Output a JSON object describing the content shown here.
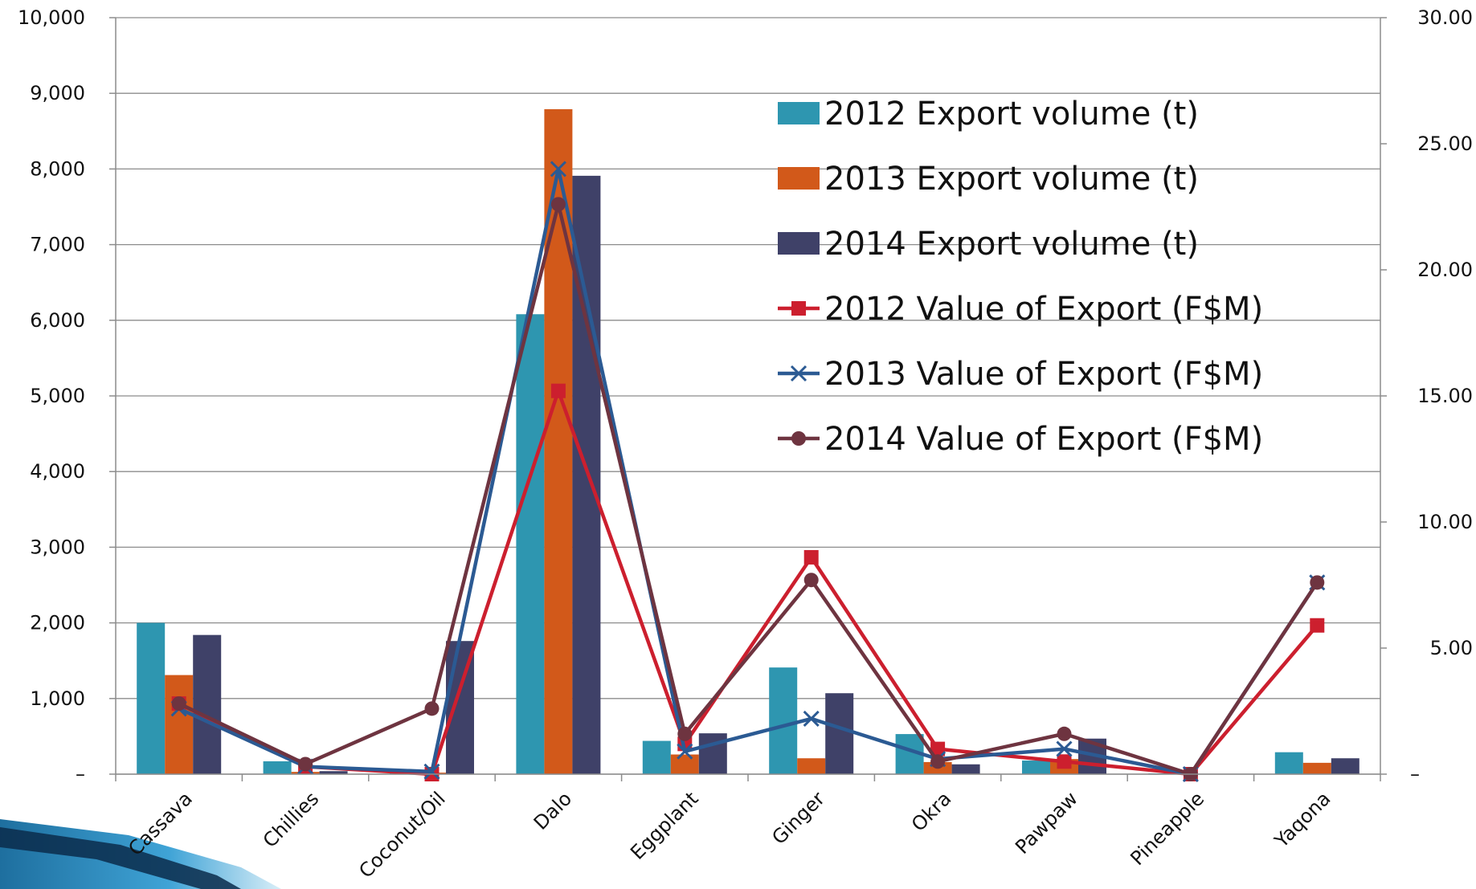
{
  "chart_data": {
    "type": "bar",
    "categories": [
      "Cassava",
      "Chillies",
      "Coconut/Oil",
      "Dalo",
      "Eggplant",
      "Ginger",
      "Okra",
      "Pawpaw",
      "Pineapple",
      "Yaqona"
    ],
    "y_left": {
      "ylim": [
        0,
        10000
      ],
      "ticks": [
        0,
        1000,
        2000,
        3000,
        4000,
        5000,
        6000,
        7000,
        8000,
        9000,
        10000
      ],
      "tick_labels": [
        "–",
        "1,000",
        "2,000",
        "3,000",
        "4,000",
        "5,000",
        "6,000",
        "7,000",
        "8,000",
        "9,000",
        "10,000"
      ]
    },
    "y_right": {
      "ylim": [
        0,
        30
      ],
      "ticks": [
        0,
        5,
        10,
        15,
        20,
        25,
        30
      ],
      "tick_labels": [
        "–",
        "5.00",
        "10.00",
        "15.00",
        "20.00",
        "25.00",
        "30.00"
      ]
    },
    "bar_series": [
      {
        "name": "2012 Export volume (t)",
        "color": "#2E96B0",
        "values": [
          2000,
          170,
          10,
          6080,
          440,
          1410,
          530,
          180,
          10,
          290
        ]
      },
      {
        "name": "2013 Export volume (t)",
        "color": "#D2591A",
        "values": [
          1310,
          30,
          20,
          8790,
          260,
          210,
          160,
          200,
          5,
          150
        ]
      },
      {
        "name": "2014 Export volume (t)",
        "color": "#3F4168",
        "values": [
          1840,
          40,
          1760,
          7910,
          540,
          1070,
          130,
          470,
          5,
          210
        ]
      }
    ],
    "line_series": [
      {
        "name": "2012 Value of Export (F$M)",
        "color": "#CC1F2E",
        "marker": "square",
        "values": [
          2.8,
          0.3,
          0.0,
          15.2,
          1.2,
          8.6,
          1.0,
          0.5,
          0.0,
          5.9
        ]
      },
      {
        "name": "2013 Value of Export (F$M)",
        "color": "#2B5A93",
        "marker": "x",
        "values": [
          2.6,
          0.3,
          0.1,
          24.0,
          0.9,
          2.2,
          0.6,
          1.0,
          0.0,
          7.6
        ]
      },
      {
        "name": "2014 Value of Export (F$M)",
        "color": "#6E3440",
        "marker": "circle",
        "values": [
          2.8,
          0.4,
          2.6,
          22.6,
          1.6,
          7.7,
          0.5,
          1.6,
          0.0,
          7.6
        ]
      }
    ],
    "grid": true,
    "legend_position": "top-right"
  }
}
